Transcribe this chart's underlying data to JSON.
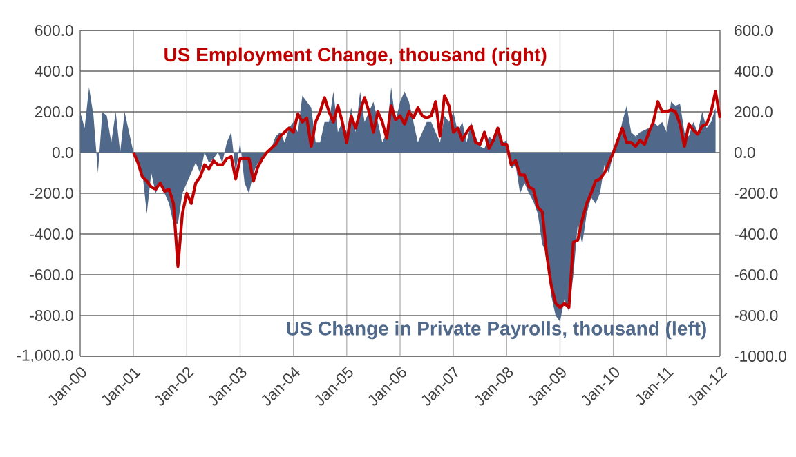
{
  "chart_data": {
    "type": "area",
    "series": [
      {
        "name": "US Change in Private Payrolls, thousand (left)",
        "axis": "y",
        "color": "#50698a",
        "x": [
          "2000-01",
          "2000-02",
          "2000-03",
          "2000-04",
          "2000-05",
          "2000-06",
          "2000-07",
          "2000-08",
          "2000-09",
          "2000-10",
          "2000-11",
          "2000-12",
          "2001-01",
          "2001-02",
          "2001-03",
          "2001-04",
          "2001-05",
          "2001-06",
          "2001-07",
          "2001-08",
          "2001-09",
          "2001-10",
          "2001-11",
          "2001-12",
          "2002-01",
          "2002-02",
          "2002-03",
          "2002-04",
          "2002-05",
          "2002-06",
          "2002-07",
          "2002-08",
          "2002-09",
          "2002-10",
          "2002-11",
          "2002-12",
          "2003-01",
          "2003-02",
          "2003-03",
          "2003-04",
          "2003-05",
          "2003-06",
          "2003-07",
          "2003-08",
          "2003-09",
          "2003-10",
          "2003-11",
          "2003-12",
          "2004-01",
          "2004-02",
          "2004-03",
          "2004-04",
          "2004-05",
          "2004-06",
          "2004-07",
          "2004-08",
          "2004-09",
          "2004-10",
          "2004-11",
          "2004-12",
          "2005-01",
          "2005-02",
          "2005-03",
          "2005-04",
          "2005-05",
          "2005-06",
          "2005-07",
          "2005-08",
          "2005-09",
          "2005-10",
          "2005-11",
          "2005-12",
          "2006-01",
          "2006-02",
          "2006-03",
          "2006-04",
          "2006-05",
          "2006-06",
          "2006-07",
          "2006-08",
          "2006-09",
          "2006-10",
          "2006-11",
          "2006-12",
          "2007-01",
          "2007-02",
          "2007-03",
          "2007-04",
          "2007-05",
          "2007-06",
          "2007-07",
          "2007-08",
          "2007-09",
          "2007-10",
          "2007-11",
          "2007-12",
          "2008-01",
          "2008-02",
          "2008-03",
          "2008-04",
          "2008-05",
          "2008-06",
          "2008-07",
          "2008-08",
          "2008-09",
          "2008-10",
          "2008-11",
          "2008-12",
          "2009-01",
          "2009-02",
          "2009-03",
          "2009-04",
          "2009-05",
          "2009-06",
          "2009-07",
          "2009-08",
          "2009-09",
          "2009-10",
          "2009-11",
          "2009-12",
          "2010-01",
          "2010-02",
          "2010-03",
          "2010-04",
          "2010-05",
          "2010-06",
          "2010-07",
          "2010-08",
          "2010-09",
          "2010-10",
          "2010-11",
          "2010-12",
          "2011-01",
          "2011-02",
          "2011-03",
          "2011-04",
          "2011-05",
          "2011-06",
          "2011-07",
          "2011-08",
          "2011-09",
          "2011-10",
          "2011-11",
          "2011-12"
        ],
        "values": [
          200,
          120,
          320,
          180,
          -100,
          200,
          180,
          50,
          200,
          0,
          200,
          100,
          0,
          -50,
          -100,
          -300,
          -100,
          -200,
          -150,
          -200,
          -250,
          -350,
          -350,
          -200,
          -150,
          -100,
          -50,
          -100,
          0,
          -50,
          -30,
          0,
          -50,
          50,
          100,
          -100,
          50,
          -150,
          -200,
          -100,
          -50,
          -30,
          0,
          20,
          80,
          100,
          50,
          120,
          150,
          100,
          280,
          250,
          220,
          50,
          50,
          150,
          150,
          300,
          100,
          150,
          100,
          220,
          100,
          300,
          150,
          200,
          250,
          150,
          50,
          100,
          320,
          150,
          250,
          300,
          250,
          150,
          50,
          100,
          150,
          150,
          100,
          50,
          180,
          150,
          200,
          100,
          150,
          50,
          150,
          80,
          30,
          20,
          80,
          60,
          100,
          50,
          60,
          -80,
          -60,
          -200,
          -150,
          -200,
          -240,
          -300,
          -450,
          -500,
          -700,
          -800,
          -830,
          -720,
          -780,
          -600,
          -350,
          -450,
          -300,
          -220,
          -250,
          -200,
          -60,
          -100,
          0,
          50,
          150,
          230,
          100,
          80,
          100,
          110,
          120,
          150,
          130,
          150,
          100,
          250,
          230,
          240,
          100,
          80,
          150,
          100,
          200,
          120,
          150,
          220
        ]
      },
      {
        "name": "US Employment Change, thousand (right)",
        "type": "line",
        "axis": "y2",
        "color": "#c00000",
        "x": [
          "2001-01",
          "2001-02",
          "2001-03",
          "2001-04",
          "2001-05",
          "2001-06",
          "2001-07",
          "2001-08",
          "2001-09",
          "2001-10",
          "2001-11",
          "2001-12",
          "2002-01",
          "2002-02",
          "2002-03",
          "2002-04",
          "2002-05",
          "2002-06",
          "2002-07",
          "2002-08",
          "2002-09",
          "2002-10",
          "2002-11",
          "2002-12",
          "2003-01",
          "2003-02",
          "2003-03",
          "2003-04",
          "2003-05",
          "2003-06",
          "2003-07",
          "2003-08",
          "2003-09",
          "2003-10",
          "2003-11",
          "2003-12",
          "2004-01",
          "2004-02",
          "2004-03",
          "2004-04",
          "2004-05",
          "2004-06",
          "2004-07",
          "2004-08",
          "2004-09",
          "2004-10",
          "2004-11",
          "2004-12",
          "2005-01",
          "2005-02",
          "2005-03",
          "2005-04",
          "2005-05",
          "2005-06",
          "2005-07",
          "2005-08",
          "2005-09",
          "2005-10",
          "2005-11",
          "2005-12",
          "2006-01",
          "2006-02",
          "2006-03",
          "2006-04",
          "2006-05",
          "2006-06",
          "2006-07",
          "2006-08",
          "2006-09",
          "2006-10",
          "2006-11",
          "2006-12",
          "2007-01",
          "2007-02",
          "2007-03",
          "2007-04",
          "2007-05",
          "2007-06",
          "2007-07",
          "2007-08",
          "2007-09",
          "2007-10",
          "2007-11",
          "2007-12",
          "2008-01",
          "2008-02",
          "2008-03",
          "2008-04",
          "2008-05",
          "2008-06",
          "2008-07",
          "2008-08",
          "2008-09",
          "2008-10",
          "2008-11",
          "2008-12",
          "2009-01",
          "2009-02",
          "2009-03",
          "2009-04",
          "2009-05",
          "2009-06",
          "2009-07",
          "2009-08",
          "2009-09",
          "2009-10",
          "2009-11",
          "2009-12",
          "2010-01",
          "2010-02",
          "2010-03",
          "2010-04",
          "2010-05",
          "2010-06",
          "2010-07",
          "2010-08",
          "2010-09",
          "2010-10",
          "2010-11",
          "2010-12",
          "2011-01",
          "2011-02",
          "2011-03",
          "2011-04",
          "2011-05",
          "2011-06",
          "2011-07",
          "2011-08",
          "2011-09",
          "2011-10",
          "2011-11",
          "2011-12",
          "2012-01"
        ],
        "values": [
          0,
          -50,
          -120,
          -140,
          -170,
          -180,
          -150,
          -190,
          -180,
          -250,
          -560,
          -300,
          -200,
          -250,
          -150,
          -120,
          -60,
          -80,
          -40,
          -60,
          -60,
          -30,
          -20,
          -130,
          -30,
          -30,
          -30,
          -140,
          -70,
          -30,
          0,
          20,
          40,
          80,
          100,
          120,
          100,
          190,
          150,
          170,
          30,
          150,
          200,
          270,
          200,
          150,
          230,
          150,
          50,
          180,
          120,
          200,
          270,
          200,
          100,
          200,
          150,
          70,
          230,
          160,
          180,
          140,
          200,
          170,
          220,
          180,
          170,
          180,
          250,
          80,
          280,
          230,
          100,
          120,
          60,
          100,
          130,
          50,
          40,
          100,
          20,
          60,
          120,
          40,
          40,
          -60,
          -40,
          -110,
          -110,
          -170,
          -180,
          -270,
          -290,
          -500,
          -650,
          -740,
          -760,
          -740,
          -760,
          -440,
          -430,
          -330,
          -250,
          -200,
          -140,
          -130,
          -100,
          -50,
          0,
          60,
          120,
          50,
          50,
          30,
          60,
          40,
          100,
          150,
          250,
          200,
          200,
          210,
          200,
          140,
          30,
          140,
          110,
          90,
          130,
          140,
          200,
          300,
          170
        ]
      }
    ],
    "xlim": [
      "2000-01",
      "2012-01"
    ],
    "xticks": [
      {
        "value": "2000-01",
        "label": "Jan-00"
      },
      {
        "value": "2001-01",
        "label": "Jan-01"
      },
      {
        "value": "2002-01",
        "label": "Jan-02"
      },
      {
        "value": "2003-01",
        "label": "Jan-03"
      },
      {
        "value": "2004-01",
        "label": "Jan-04"
      },
      {
        "value": "2005-01",
        "label": "Jan-05"
      },
      {
        "value": "2006-01",
        "label": "Jan-06"
      },
      {
        "value": "2007-01",
        "label": "Jan-07"
      },
      {
        "value": "2008-01",
        "label": "Jan-08"
      },
      {
        "value": "2009-01",
        "label": "Jan-09"
      },
      {
        "value": "2010-01",
        "label": "Jan-10"
      },
      {
        "value": "2011-01",
        "label": "Jan-11"
      },
      {
        "value": "2012-01",
        "label": "Jan-12"
      }
    ],
    "ylim": [
      -1000,
      600
    ],
    "yticks": [
      {
        "value": -1000,
        "label": "-1,000.0"
      },
      {
        "value": -800,
        "label": "-800.0"
      },
      {
        "value": -600,
        "label": "-600.0"
      },
      {
        "value": -400,
        "label": "-400.0"
      },
      {
        "value": -200,
        "label": "-200.0"
      },
      {
        "value": 0,
        "label": "0.0"
      },
      {
        "value": 200,
        "label": "200.0"
      },
      {
        "value": 400,
        "label": "400.0"
      },
      {
        "value": 600,
        "label": "600.0"
      }
    ],
    "y2lim": [
      -1000,
      600
    ],
    "y2ticks": [
      {
        "value": -1000,
        "label": "-1000.0"
      },
      {
        "value": -800,
        "label": "-800.0"
      },
      {
        "value": -600,
        "label": "-600.0"
      },
      {
        "value": -400,
        "label": "-400.0"
      },
      {
        "value": -200,
        "label": "-200.0"
      },
      {
        "value": 0,
        "label": "0.0"
      },
      {
        "value": 200,
        "label": "200.0"
      },
      {
        "value": 400,
        "label": "400.0"
      },
      {
        "value": 600,
        "label": "600.0"
      }
    ],
    "grid": true
  }
}
